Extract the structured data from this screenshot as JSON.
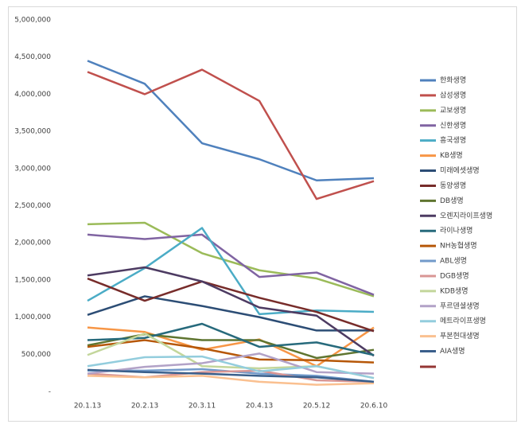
{
  "chart_data": {
    "type": "line",
    "categories": [
      "20.1.13",
      "20.2.13",
      "20.3.11",
      "20.4.13",
      "20.5.12",
      "20.6.10"
    ],
    "ylim": [
      0,
      5000000
    ],
    "yticks": [
      {
        "value": 0,
        "label": "-"
      },
      {
        "value": 500000,
        "label": "500,000"
      },
      {
        "value": 1000000,
        "label": "1,000,000"
      },
      {
        "value": 1500000,
        "label": "1,500,000"
      },
      {
        "value": 2000000,
        "label": "2,000,000"
      },
      {
        "value": 2500000,
        "label": "2,500,000"
      },
      {
        "value": 3000000,
        "label": "3,000,000"
      },
      {
        "value": 3500000,
        "label": "3,500,000"
      },
      {
        "value": 4000000,
        "label": "4,000,000"
      },
      {
        "value": 4500000,
        "label": "4,500,000"
      },
      {
        "value": 5000000,
        "label": "5,000,000"
      }
    ],
    "grid": false,
    "legend": "right",
    "series": [
      {
        "name": "한화생명",
        "color": "#4f81bd",
        "values": [
          4450000,
          4140000,
          3340000,
          3125000,
          2840000,
          2870000
        ]
      },
      {
        "name": "삼성생명",
        "color": "#c0504d",
        "values": [
          4300000,
          4000000,
          4330000,
          3910000,
          2590000,
          2830000
        ]
      },
      {
        "name": "교보생명",
        "color": "#9bbb59",
        "values": [
          2250000,
          2270000,
          1860000,
          1630000,
          1520000,
          1280000
        ]
      },
      {
        "name": "신한생명",
        "color": "#8064a2",
        "values": [
          2110000,
          2050000,
          2110000,
          1540000,
          1600000,
          1300000
        ]
      },
      {
        "name": "흥국생명",
        "color": "#4bacc6",
        "values": [
          1220000,
          1660000,
          2200000,
          1040000,
          1090000,
          1070000
        ]
      },
      {
        "name": "KB생명",
        "color": "#f79646",
        "values": [
          860000,
          800000,
          560000,
          700000,
          340000,
          860000
        ]
      },
      {
        "name": "미래에셋생명",
        "color": "#2c4d75",
        "values": [
          1030000,
          1280000,
          1150000,
          1000000,
          820000,
          820000
        ]
      },
      {
        "name": "동양생명",
        "color": "#772c2a",
        "values": [
          1520000,
          1220000,
          1480000,
          1260000,
          1070000,
          810000
        ]
      },
      {
        "name": "DB생명",
        "color": "#5f7530",
        "values": [
          620000,
          770000,
          690000,
          690000,
          450000,
          560000
        ]
      },
      {
        "name": "오렌지라이프생명",
        "color": "#4d3b62",
        "values": [
          1560000,
          1670000,
          1480000,
          1130000,
          1020000,
          480000
        ]
      },
      {
        "name": "라이나생명",
        "color": "#276a7c",
        "values": [
          690000,
          720000,
          910000,
          600000,
          660000,
          490000
        ]
      },
      {
        "name": "NH농협생명",
        "color": "#b65708",
        "values": [
          600000,
          690000,
          580000,
          430000,
          420000,
          390000
        ]
      },
      {
        "name": "ABL생명",
        "color": "#729aca",
        "values": [
          280000,
          280000,
          300000,
          240000,
          210000,
          130000
        ]
      },
      {
        "name": "DGB생명",
        "color": "#d99694",
        "values": [
          240000,
          190000,
          260000,
          280000,
          150000,
          130000
        ]
      },
      {
        "name": "KDB생명",
        "color": "#c3d69b",
        "values": [
          490000,
          780000,
          340000,
          310000,
          340000,
          180000
        ]
      },
      {
        "name": "푸르덴셜생명",
        "color": "#b2a2c7",
        "values": [
          240000,
          330000,
          380000,
          510000,
          260000,
          240000
        ]
      },
      {
        "name": "메트라이프생명",
        "color": "#93cddd",
        "values": [
          340000,
          460000,
          470000,
          270000,
          340000,
          180000
        ]
      },
      {
        "name": "푸본현대생명",
        "color": "#fac090",
        "values": [
          210000,
          190000,
          210000,
          130000,
          90000,
          110000
        ]
      },
      {
        "name": "AIA생명",
        "color": "#3a5f8b",
        "values": [
          290000,
          260000,
          240000,
          210000,
          190000,
          130000
        ]
      }
    ]
  }
}
